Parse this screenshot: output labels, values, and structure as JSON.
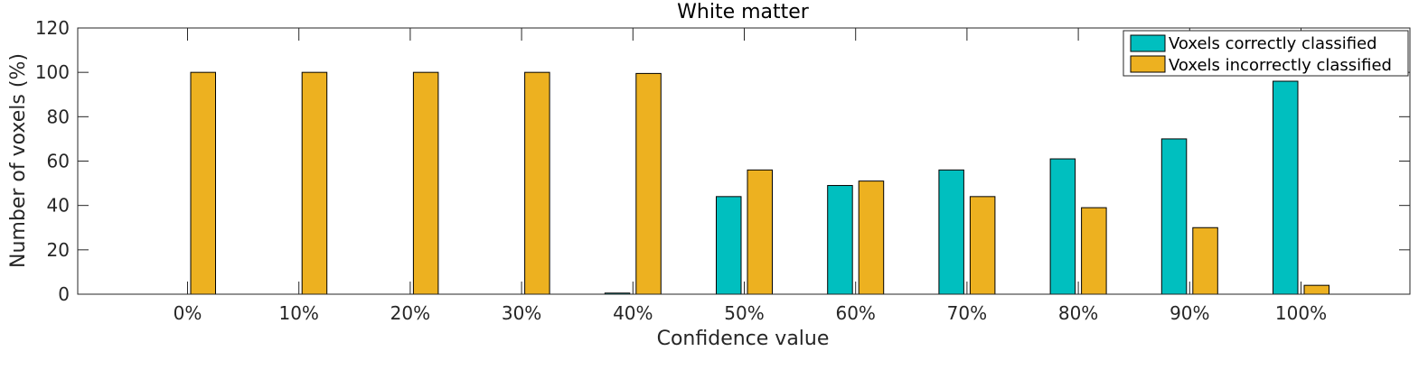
{
  "chart_data": {
    "type": "bar",
    "title": "White matter",
    "xlabel": "Confidence value",
    "ylabel": "Number of voxels (%)",
    "ylim": [
      0,
      120
    ],
    "yticks": [
      0,
      20,
      40,
      60,
      80,
      100,
      120
    ],
    "categories": [
      "0%",
      "10%",
      "20%",
      "30%",
      "40%",
      "50%",
      "60%",
      "70%",
      "80%",
      "90%",
      "100%"
    ],
    "series": [
      {
        "name": "Voxels correctly classified",
        "color": "#00BFBF",
        "values": [
          0,
          0,
          0,
          0,
          0.5,
          44,
          49,
          56,
          61,
          70,
          96
        ]
      },
      {
        "name": "Voxels incorrectly classified",
        "color": "#EDB120",
        "values": [
          100,
          100,
          100,
          100,
          99.5,
          56,
          51,
          44,
          39,
          30,
          4
        ]
      }
    ],
    "grid": false,
    "legend_position": "top-right"
  }
}
